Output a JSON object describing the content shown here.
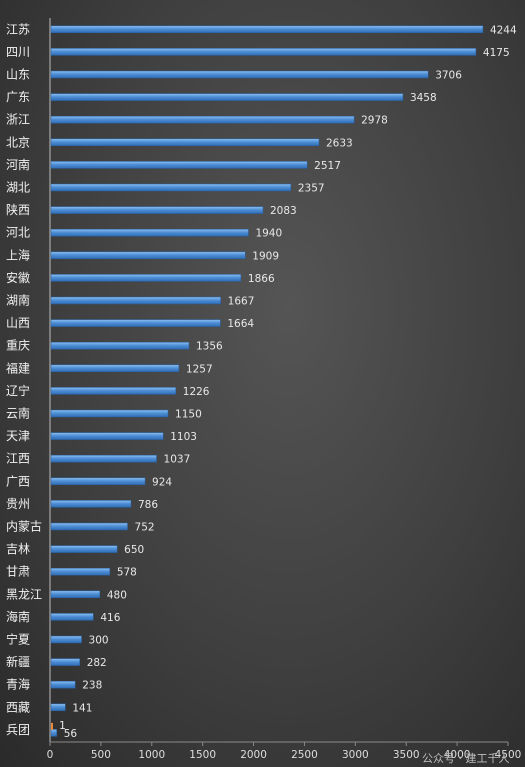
{
  "chart_data": {
    "type": "bar",
    "orientation": "horizontal",
    "categories": [
      "江苏",
      "四川",
      "山东",
      "广东",
      "浙江",
      "北京",
      "河南",
      "湖北",
      "陕西",
      "河北",
      "上海",
      "安徽",
      "湖南",
      "山西",
      "重庆",
      "福建",
      "辽宁",
      "云南",
      "天津",
      "江西",
      "广西",
      "贵州",
      "内蒙古",
      "吉林",
      "甘肃",
      "黑龙江",
      "海南",
      "宁夏",
      "新疆",
      "青海",
      "西藏",
      "兵团"
    ],
    "series": [
      {
        "values": [
          4244,
          4175,
          3706,
          3458,
          2978,
          2633,
          2517,
          2357,
          2083,
          1940,
          1909,
          1866,
          1667,
          1664,
          1356,
          1257,
          1226,
          1150,
          1103,
          1037,
          924,
          786,
          752,
          650,
          578,
          480,
          416,
          300,
          282,
          238,
          141,
          56
        ]
      },
      {
        "values": [
          null,
          null,
          null,
          null,
          null,
          null,
          null,
          null,
          null,
          null,
          null,
          null,
          null,
          null,
          null,
          null,
          null,
          null,
          null,
          null,
          null,
          null,
          null,
          null,
          null,
          null,
          null,
          null,
          null,
          null,
          null,
          1
        ]
      }
    ],
    "xlim": [
      0,
      4500
    ],
    "xticks": [
      "0",
      "500",
      "1000",
      "1500",
      "2000",
      "2500",
      "3000",
      "3500",
      "4000",
      "4500"
    ],
    "grid": false,
    "colors": {
      "bar": "#4f8fd6",
      "bar_highlight": "#7fb3ea",
      "second_series": "#e8893a"
    }
  },
  "watermark": "公众号 · 建工千人"
}
